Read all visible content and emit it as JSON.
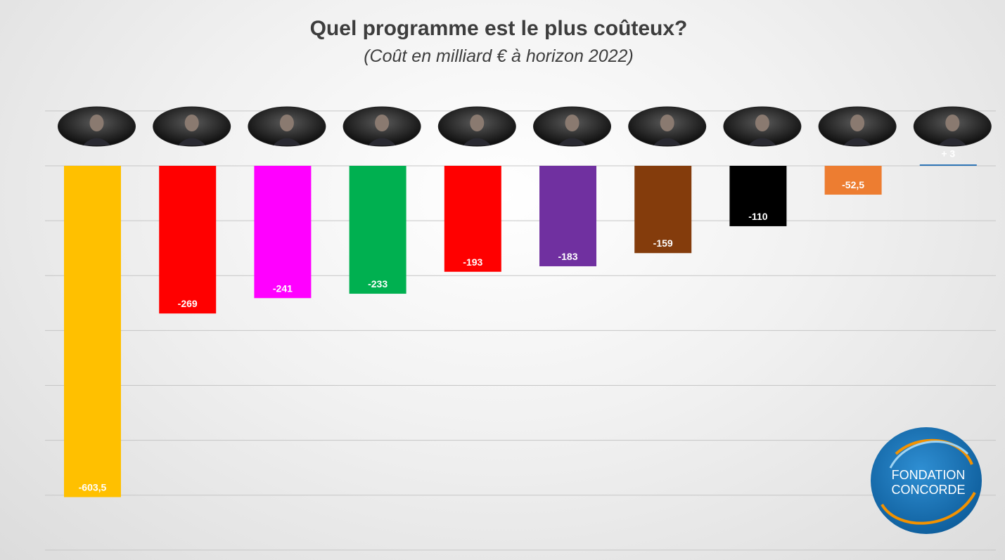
{
  "chart_data": {
    "type": "bar",
    "title": "Quel programme est le plus coûteux?",
    "subtitle": "(Coût en milliard € à horizon 2022)",
    "categories": [
      "",
      "",
      "",
      "",
      "",
      "",
      "",
      "",
      "",
      ""
    ],
    "values": [
      -603.5,
      -269,
      -241,
      -233,
      -193,
      -183,
      -159,
      -110,
      -52.5,
      3
    ],
    "value_labels": [
      "-603,5",
      "-269",
      "-241",
      "-233",
      "-193",
      "-183",
      "-159",
      "-110",
      "-52,5",
      "+ 3"
    ],
    "colors": [
      "#ffc000",
      "#ff0000",
      "#ff00ff",
      "#00b050",
      "#ff0000",
      "#7030a0",
      "#843c0c",
      "#000000",
      "#ed7d31",
      "#2e75b6"
    ],
    "ylim": [
      -700,
      100
    ],
    "grid": true,
    "legend": "none"
  },
  "logo": {
    "line1": "Fondation",
    "line2": "Concorde"
  }
}
